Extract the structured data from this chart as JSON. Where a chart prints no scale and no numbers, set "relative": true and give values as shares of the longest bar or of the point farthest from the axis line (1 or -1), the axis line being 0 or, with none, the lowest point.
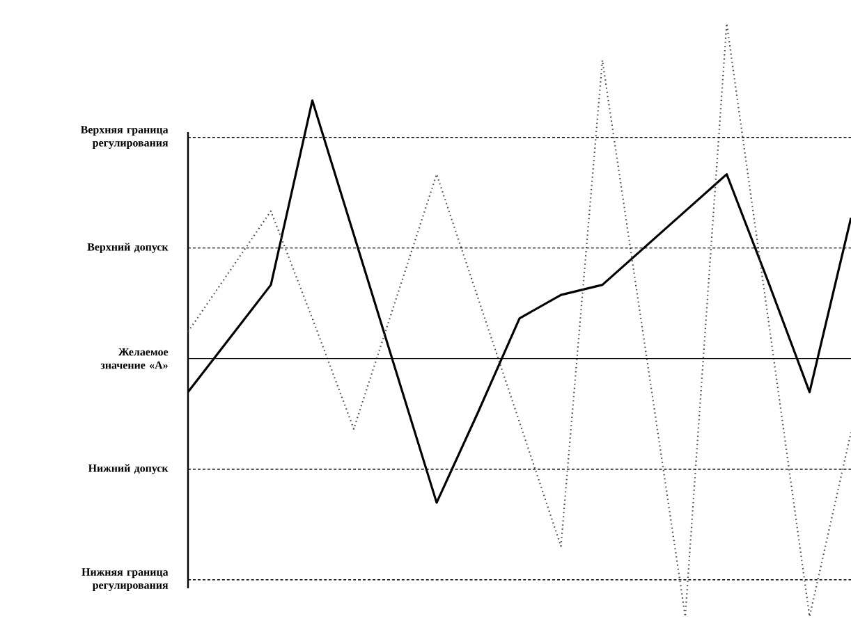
{
  "chart_data": {
    "type": "line",
    "relative": true,
    "categories": [
      null,
      null,
      null,
      null,
      null,
      null,
      null,
      null,
      null,
      null,
      null,
      null,
      null,
      null,
      null,
      null,
      null
    ],
    "series": [
      {
        "color": "#000000",
        "line_style": "solid",
        "values": [
          -0.1,
          0.06,
          0.22,
          0.77,
          0.37,
          -0.03,
          -0.43,
          -0.16,
          0.12,
          0.19,
          0.22,
          0.33,
          0.44,
          0.55,
          0.23,
          -0.1,
          0.42
        ]
      },
      {
        "color": "#444444",
        "line_style": "dotted",
        "values": [
          0.08,
          0.26,
          0.44,
          0.12,
          -0.21,
          0.17,
          0.55,
          0.18,
          -0.19,
          -0.56,
          0.89,
          0.06,
          -0.77,
          1.0,
          0.12,
          -0.77,
          -0.22
        ]
      }
    ],
    "ref_lines": [
      {
        "axis": "y",
        "value": 0.66,
        "label": "Верхняя граница регулирования",
        "line_style": "dashed",
        "color": "#000000"
      },
      {
        "axis": "y",
        "value": 0.33,
        "label": "Верхний допуск",
        "line_style": "dashed",
        "color": "#000000"
      },
      {
        "axis": "y",
        "value": 0,
        "label": "Желаемое значение «А»",
        "line_style": "solid",
        "color": "#000000"
      },
      {
        "axis": "y",
        "value": -0.33,
        "label": "Нижний допуск",
        "line_style": "dashed",
        "color": "#000000"
      },
      {
        "axis": "y",
        "value": -0.66,
        "label": "Нижняя граница регулирования",
        "line_style": "dashed",
        "color": "#000000"
      }
    ]
  }
}
